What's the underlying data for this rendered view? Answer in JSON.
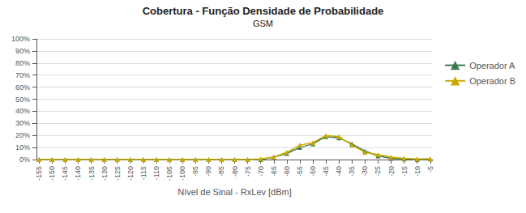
{
  "chart_data": {
    "type": "line",
    "title": "Cobertura - Função Densidade de Probabilidade",
    "subtitle": "GSM",
    "xlabel": "Nível de Sinal - RxLev [dBm]",
    "x": [
      -155,
      -150,
      -145,
      -140,
      -135,
      -130,
      -125,
      -120,
      -115,
      -110,
      -105,
      -100,
      -95,
      -90,
      -85,
      -80,
      -75,
      -70,
      -65,
      -60,
      -55,
      -50,
      -45,
      -40,
      -35,
      -30,
      -25,
      -20,
      -15,
      -10,
      -5
    ],
    "series": [
      {
        "name": "Operador A",
        "color": "#3d7a52",
        "marker": "triangle",
        "values": [
          0.0,
          0.0,
          0.0,
          0.0,
          0.0,
          0.0,
          0.0,
          0.0,
          0.0,
          0.0,
          0.0,
          0.0,
          0.0,
          0.0,
          0.0,
          0.0,
          0.0,
          0.0,
          0.02,
          0.05,
          0.1,
          0.13,
          0.19,
          0.18,
          0.13,
          0.07,
          0.03,
          0.01,
          0.005,
          0.0,
          0.005
        ]
      },
      {
        "name": "Operador B",
        "color": "#ccaa00",
        "marker": "triangle",
        "values": [
          0.0,
          0.0,
          0.0,
          0.0,
          0.0,
          0.0,
          0.0,
          0.0,
          0.0,
          0.0,
          0.0,
          0.0,
          0.0,
          0.0,
          0.0,
          0.0,
          0.0,
          0.005,
          0.02,
          0.06,
          0.12,
          0.14,
          0.2,
          0.19,
          0.12,
          0.06,
          0.04,
          0.02,
          0.01,
          0.005,
          0.005
        ]
      }
    ],
    "xlim": [
      -156,
      -4
    ],
    "xticks": [
      -155,
      -150,
      -145,
      -140,
      -135,
      -130,
      -125,
      -120,
      -115,
      -110,
      -105,
      -100,
      -95,
      -90,
      -85,
      -80,
      -75,
      -70,
      -65,
      -60,
      -55,
      -50,
      -45,
      -40,
      -35,
      -30,
      -25,
      -20,
      -15,
      -10,
      -5
    ],
    "ylim": [
      0,
      1.0
    ],
    "yticks": [
      {
        "value": 0.0,
        "label": "0%"
      },
      {
        "value": 0.1,
        "label": "10%"
      },
      {
        "value": 0.2,
        "label": "20%"
      },
      {
        "value": 0.3,
        "label": "30%"
      },
      {
        "value": 0.4,
        "label": "40%"
      },
      {
        "value": 0.5,
        "label": "50%"
      },
      {
        "value": 0.6,
        "label": "60%"
      },
      {
        "value": 0.7,
        "label": "70%"
      },
      {
        "value": 0.8,
        "label": "80%"
      },
      {
        "value": 0.9,
        "label": "90%"
      },
      {
        "value": 1.0,
        "label": "100%"
      }
    ],
    "grid": true,
    "legend": "right"
  }
}
